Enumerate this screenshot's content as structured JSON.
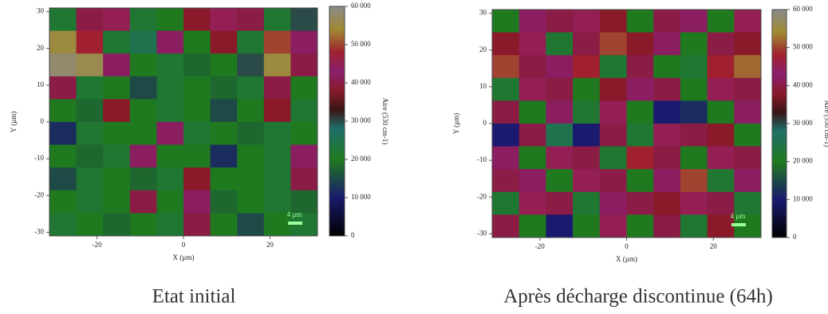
{
  "chart_data": [
    {
      "type": "heatmap",
      "title": "Etat initial",
      "xlabel": "X (µm)",
      "ylabel": "Y (µm)",
      "colorbar_label": "Aire (530 cm-1)",
      "annotation": "4 µm",
      "xlim": [
        -31,
        31
      ],
      "ylim": [
        -31,
        31
      ],
      "xticks": [
        -20,
        0,
        20
      ],
      "yticks": [
        -30,
        -20,
        -10,
        0,
        10,
        20,
        30
      ],
      "zlim": [
        0,
        60000
      ],
      "zticks": [
        {
          "value": 0,
          "label": "0"
        },
        {
          "value": 10000,
          "label": "10 000"
        },
        {
          "value": 20000,
          "label": "20 000"
        },
        {
          "value": 30000,
          "label": "30 000"
        },
        {
          "value": 40000,
          "label": "40 000"
        },
        {
          "value": 50000,
          "label": "50 000"
        },
        {
          "value": 60000,
          "label": "60 000"
        }
      ],
      "colormap": [
        {
          "value": 0,
          "color": "#000000"
        },
        {
          "value": 10000,
          "color": "#1a1a6e"
        },
        {
          "value": 20000,
          "color": "#1f7a1f"
        },
        {
          "value": 28000,
          "color": "#1f6f6a"
        },
        {
          "value": 33000,
          "color": "#3a1515"
        },
        {
          "value": 38000,
          "color": "#8a1a2a"
        },
        {
          "value": 43000,
          "color": "#8a1f6e"
        },
        {
          "value": 48000,
          "color": "#a02030"
        },
        {
          "value": 54000,
          "color": "#a08a30"
        },
        {
          "value": 60000,
          "color": "#8a8a8a"
        }
      ],
      "z": [
        [
          22000,
          40000,
          45000,
          22000,
          20000,
          38000,
          45000,
          40000,
          22000,
          30000
        ],
        [
          55000,
          48000,
          22000,
          25000,
          42000,
          20000,
          38000,
          22000,
          50000,
          42000
        ],
        [
          58000,
          56000,
          42000,
          20000,
          22000,
          18000,
          20000,
          30000,
          55000,
          40000
        ],
        [
          40000,
          22000,
          20000,
          15000,
          22000,
          20000,
          18000,
          22000,
          40000,
          20000
        ],
        [
          20000,
          18000,
          38000,
          20000,
          22000,
          20000,
          15000,
          20000,
          38000,
          22000
        ],
        [
          12000,
          22000,
          20000,
          20000,
          42000,
          22000,
          20000,
          18000,
          22000,
          20000
        ],
        [
          20000,
          18000,
          22000,
          42000,
          20000,
          20000,
          12000,
          20000,
          22000,
          42000
        ],
        [
          15000,
          22000,
          20000,
          18000,
          22000,
          38000,
          20000,
          20000,
          22000,
          40000
        ],
        [
          20000,
          22000,
          20000,
          40000,
          20000,
          42000,
          18000,
          20000,
          22000,
          18000
        ],
        [
          22000,
          20000,
          18000,
          20000,
          22000,
          40000,
          20000,
          15000,
          20000,
          22000
        ]
      ]
    },
    {
      "type": "heatmap",
      "title": "Après décharge discontinue (64h)",
      "xlabel": "X (µm)",
      "ylabel": "Y (µm)",
      "colorbar_label": "Aire (530 cm-1)",
      "annotation": "4 µm",
      "xlim": [
        -31,
        31
      ],
      "ylim": [
        -31,
        31
      ],
      "xticks": [
        -20,
        0,
        20
      ],
      "yticks": [
        -30,
        -20,
        -10,
        0,
        10,
        20,
        30
      ],
      "zlim": [
        0,
        60000
      ],
      "zticks": [
        {
          "value": 0,
          "label": "0"
        },
        {
          "value": 10000,
          "label": "10 000"
        },
        {
          "value": 20000,
          "label": "20 000"
        },
        {
          "value": 30000,
          "label": "30 000"
        },
        {
          "value": 40000,
          "label": "40 000"
        },
        {
          "value": 50000,
          "label": "50 000"
        },
        {
          "value": 60000,
          "label": "60 000"
        }
      ],
      "colormap": [
        {
          "value": 0,
          "color": "#000000"
        },
        {
          "value": 10000,
          "color": "#1a1a6e"
        },
        {
          "value": 20000,
          "color": "#1f7a1f"
        },
        {
          "value": 28000,
          "color": "#1f6f6a"
        },
        {
          "value": 33000,
          "color": "#3a1515"
        },
        {
          "value": 38000,
          "color": "#8a1a2a"
        },
        {
          "value": 43000,
          "color": "#8a1f6e"
        },
        {
          "value": 48000,
          "color": "#a02030"
        },
        {
          "value": 54000,
          "color": "#a08a30"
        },
        {
          "value": 60000,
          "color": "#8a8a8a"
        }
      ],
      "z": [
        [
          20000,
          42000,
          40000,
          45000,
          38000,
          20000,
          40000,
          42000,
          20000,
          45000
        ],
        [
          38000,
          45000,
          22000,
          40000,
          50000,
          38000,
          42000,
          20000,
          40000,
          38000
        ],
        [
          50000,
          40000,
          42000,
          48000,
          22000,
          40000,
          20000,
          22000,
          48000,
          52000
        ],
        [
          22000,
          45000,
          40000,
          20000,
          38000,
          42000,
          40000,
          20000,
          45000,
          40000
        ],
        [
          40000,
          20000,
          42000,
          22000,
          45000,
          20000,
          10000,
          12000,
          20000,
          42000
        ],
        [
          10000,
          40000,
          25000,
          10000,
          40000,
          22000,
          45000,
          40000,
          38000,
          20000
        ],
        [
          42000,
          20000,
          45000,
          40000,
          22000,
          48000,
          40000,
          20000,
          45000,
          40000
        ],
        [
          40000,
          42000,
          20000,
          45000,
          40000,
          20000,
          42000,
          50000,
          22000,
          42000
        ],
        [
          22000,
          45000,
          40000,
          22000,
          42000,
          40000,
          38000,
          45000,
          40000,
          22000
        ],
        [
          40000,
          20000,
          10000,
          20000,
          45000,
          20000,
          40000,
          22000,
          38000,
          20000
        ]
      ]
    }
  ]
}
